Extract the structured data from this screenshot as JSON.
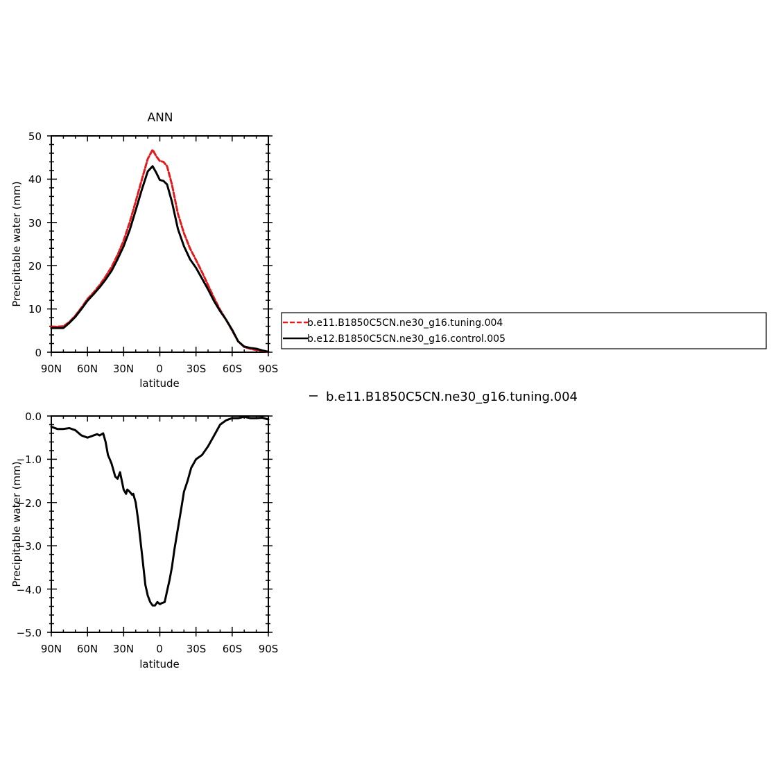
{
  "chart_data": [
    {
      "type": "line",
      "title": "ANN",
      "xlabel": "latitude",
      "ylabel": "Precipitable water (mm)",
      "xlim": [
        90,
        -90
      ],
      "ylim": [
        0,
        50
      ],
      "x_tick_labels": [
        "90N",
        "60N",
        "30N",
        "0",
        "30S",
        "60S",
        "90S"
      ],
      "y_tick_labels": [
        "0",
        "10",
        "20",
        "30",
        "40",
        "50"
      ],
      "legend": {
        "position": "right",
        "entries": [
          "b.e11.B1850C5CN.ne30_g16.tuning.004",
          "b.e12.B1850C5CN.ne30_g16.control.005"
        ]
      },
      "series": [
        {
          "name": "b.e11.B1850C5CN.ne30_g16.tuning.004",
          "color": "#e31a1c",
          "style": "dashed",
          "x": [
            90,
            85,
            80,
            75,
            70,
            65,
            60,
            55,
            50,
            45,
            40,
            35,
            30,
            25,
            20,
            15,
            10,
            6,
            3,
            0,
            -3,
            -6,
            -10,
            -15,
            -20,
            -25,
            -30,
            -35,
            -40,
            -45,
            -50,
            -55,
            -60,
            -65,
            -70,
            -75,
            -80,
            -85,
            -90
          ],
          "y": [
            5.9,
            5.9,
            6.0,
            7.0,
            8.5,
            10.3,
            12.3,
            13.8,
            15.5,
            17.5,
            19.7,
            22.5,
            25.8,
            30.0,
            34.8,
            39.8,
            44.7,
            46.8,
            45.3,
            44.2,
            44.0,
            43.0,
            38.8,
            32.0,
            27.5,
            24.0,
            21.3,
            18.5,
            15.5,
            12.5,
            9.8,
            7.5,
            5.0,
            2.5,
            1.2,
            0.8,
            0.5,
            0.3,
            0.0
          ]
        },
        {
          "name": "b.e12.B1850C5CN.ne30_g16.control.005",
          "color": "#000000",
          "style": "solid",
          "x": [
            90,
            85,
            80,
            75,
            70,
            65,
            60,
            55,
            50,
            45,
            40,
            35,
            30,
            25,
            20,
            15,
            10,
            6,
            3,
            0,
            -3,
            -6,
            -10,
            -15,
            -20,
            -25,
            -30,
            -35,
            -40,
            -45,
            -50,
            -55,
            -60,
            -65,
            -70,
            -75,
            -80,
            -85,
            -90
          ],
          "y": [
            5.6,
            5.6,
            5.6,
            6.8,
            8.2,
            10.0,
            11.9,
            13.4,
            15.0,
            16.8,
            18.8,
            21.5,
            24.5,
            28.2,
            32.8,
            37.5,
            41.8,
            43.0,
            41.5,
            39.8,
            39.6,
            38.8,
            34.8,
            28.5,
            24.5,
            21.5,
            19.5,
            17.0,
            14.5,
            11.8,
            9.5,
            7.5,
            5.2,
            2.5,
            1.3,
            1.0,
            0.8,
            0.4,
            0.1
          ]
        }
      ]
    },
    {
      "type": "line",
      "title": "",
      "xlabel": "latitude",
      "ylabel": "Precipitable water (mm)",
      "xlim": [
        90,
        -90
      ],
      "ylim": [
        -5,
        0
      ],
      "x_tick_labels": [
        "90N",
        "60N",
        "30N",
        "0",
        "30S",
        "60S",
        "90S"
      ],
      "y_tick_labels": [
        "0.0",
        "−1.0",
        "−2.0",
        "−3.0",
        "−4.0",
        "−5.0"
      ],
      "legend": {
        "position": "top-right",
        "entries": [
          "b.e11.B1850C5CN.ne30_g16.tuning.004"
        ]
      },
      "zero_line": true,
      "series": [
        {
          "name": "b.e11.B1850C5CN.ne30_g16.tuning.004",
          "color": "#000000",
          "style": "solid",
          "x": [
            90,
            85,
            80,
            75,
            70,
            65,
            60,
            55,
            52,
            50,
            47,
            45,
            43,
            40,
            37,
            35,
            33,
            30,
            28,
            27,
            25,
            23,
            22,
            20,
            18,
            16,
            14,
            12,
            10,
            8,
            6,
            4,
            2,
            0,
            -2,
            -4,
            -6,
            -8,
            -10,
            -12,
            -15,
            -18,
            -20,
            -23,
            -26,
            -30,
            -35,
            -40,
            -45,
            -50,
            -55,
            -60,
            -65,
            -70,
            -75,
            -80,
            -85,
            -90
          ],
          "y": [
            -0.25,
            -0.3,
            -0.3,
            -0.28,
            -0.33,
            -0.45,
            -0.5,
            -0.45,
            -0.42,
            -0.45,
            -0.4,
            -0.6,
            -0.9,
            -1.1,
            -1.4,
            -1.45,
            -1.3,
            -1.7,
            -1.8,
            -1.7,
            -1.75,
            -1.82,
            -1.8,
            -2.0,
            -2.4,
            -2.9,
            -3.4,
            -3.9,
            -4.15,
            -4.3,
            -4.38,
            -4.38,
            -4.3,
            -4.35,
            -4.32,
            -4.3,
            -4.05,
            -3.8,
            -3.5,
            -3.1,
            -2.6,
            -2.1,
            -1.75,
            -1.5,
            -1.2,
            -1.0,
            -0.9,
            -0.7,
            -0.45,
            -0.2,
            -0.1,
            -0.05,
            -0.05,
            -0.02,
            -0.05,
            -0.05,
            -0.04,
            -0.08
          ]
        }
      ]
    }
  ]
}
